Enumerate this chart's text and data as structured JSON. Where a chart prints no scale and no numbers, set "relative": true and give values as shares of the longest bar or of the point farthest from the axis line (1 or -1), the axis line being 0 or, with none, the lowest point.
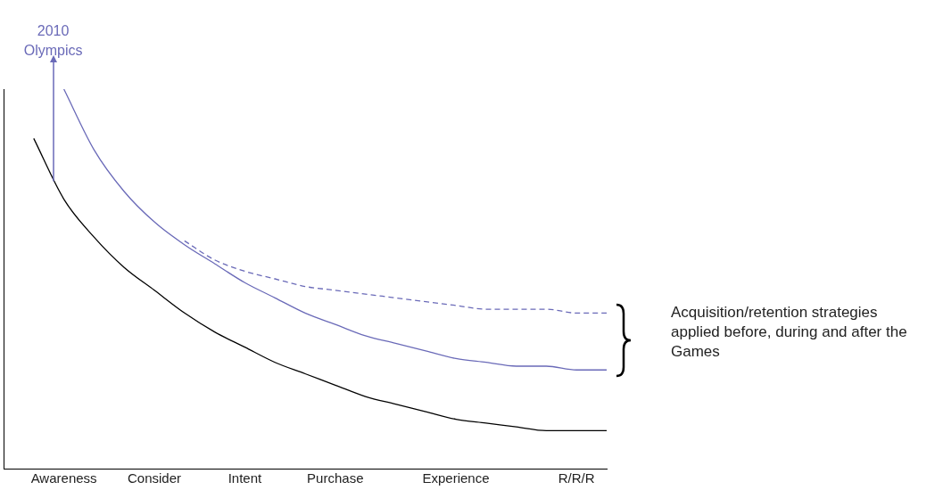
{
  "chart_data": {
    "type": "line",
    "relative": true,
    "grid": false,
    "legend": false,
    "marker": "none",
    "categories": [
      null,
      null,
      "Awareness",
      null,
      null,
      "Consider",
      null,
      null,
      "Intent",
      null,
      null,
      "Purchase",
      null,
      null,
      null,
      "Experience",
      null,
      null,
      null,
      "R/R/R",
      null
    ],
    "series": [
      {
        "color": "#000000",
        "line_style": "solid",
        "values": [
          null,
          0.87,
          0.71,
          0.61,
          0.53,
          0.47,
          0.41,
          0.36,
          0.32,
          0.28,
          0.25,
          0.22,
          0.19,
          0.17,
          0.15,
          0.13,
          0.12,
          0.11,
          0.1,
          0.1,
          0.1
        ]
      },
      {
        "color": "#6a6ab8",
        "line_style": "solid",
        "values": [
          null,
          null,
          1,
          0.84,
          0.73,
          0.65,
          0.59,
          0.54,
          0.49,
          0.45,
          0.41,
          0.38,
          0.35,
          0.33,
          0.31,
          0.29,
          0.28,
          0.27,
          0.27,
          0.26,
          0.26
        ]
      },
      {
        "color": "#6a6ab8",
        "line_style": "dashed",
        "values": [
          null,
          null,
          null,
          null,
          null,
          null,
          0.6,
          0.55,
          0.52,
          0.5,
          0.48,
          0.47,
          0.46,
          0.45,
          0.44,
          0.43,
          0.42,
          0.42,
          0.42,
          0.41,
          0.41
        ]
      }
    ],
    "annotations": [
      "2010 Olympics",
      "Acquisition/retention strategies applied before, during and after the Games"
    ]
  }
}
